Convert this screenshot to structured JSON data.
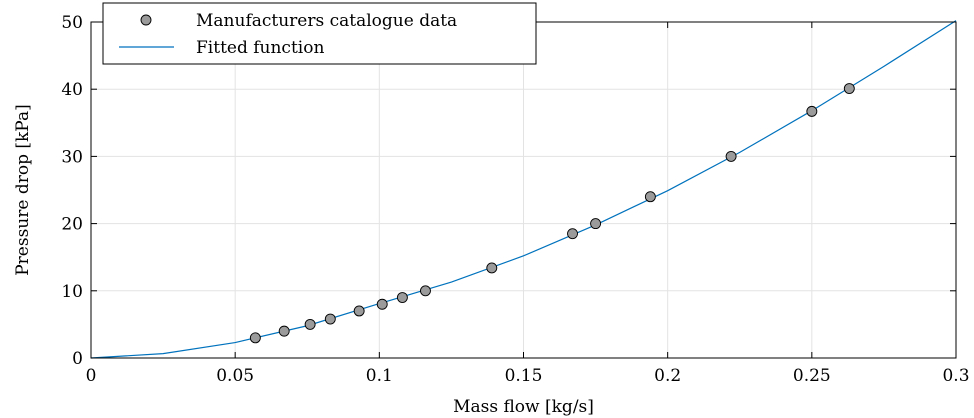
{
  "chart_data": {
    "type": "scatter",
    "xlabel": "Mass flow [kg/s]",
    "ylabel": "Pressure drop [kPa]",
    "xlim": [
      0,
      0.3
    ],
    "ylim": [
      0,
      50
    ],
    "x_ticks": [
      0,
      0.05,
      0.1,
      0.15,
      0.2,
      0.25,
      0.3
    ],
    "x_tick_labels": [
      "0",
      "0.05",
      "0.1",
      "0.15",
      "0.2",
      "0.25",
      "0.3"
    ],
    "y_ticks": [
      0,
      10,
      20,
      30,
      40,
      50
    ],
    "y_tick_labels": [
      "0",
      "10",
      "20",
      "30",
      "40",
      "50"
    ],
    "grid": true,
    "legend_position": "top-left",
    "series": [
      {
        "name": "Manufacturers catalogue data",
        "kind": "scatter",
        "color": "#9b9b9b",
        "x": [
          0.057,
          0.067,
          0.076,
          0.083,
          0.093,
          0.101,
          0.108,
          0.116,
          0.139,
          0.167,
          0.175,
          0.194,
          0.222,
          0.25,
          0.263
        ],
        "y": [
          3.0,
          4.0,
          5.0,
          5.8,
          7.0,
          8.0,
          9.0,
          10.0,
          13.4,
          18.5,
          20.0,
          24.0,
          30.0,
          36.7,
          40.1
        ]
      },
      {
        "name": "Fitted function",
        "kind": "line",
        "color": "#0072bd",
        "x": [
          0,
          0.025,
          0.05,
          0.075,
          0.1,
          0.125,
          0.15,
          0.175,
          0.2,
          0.225,
          0.25,
          0.275,
          0.3
        ],
        "y": [
          0,
          0.65,
          2.3,
          4.8,
          8.1,
          11.3,
          15.2,
          19.8,
          24.9,
          30.6,
          36.8,
          43.4,
          50.2
        ]
      }
    ]
  }
}
